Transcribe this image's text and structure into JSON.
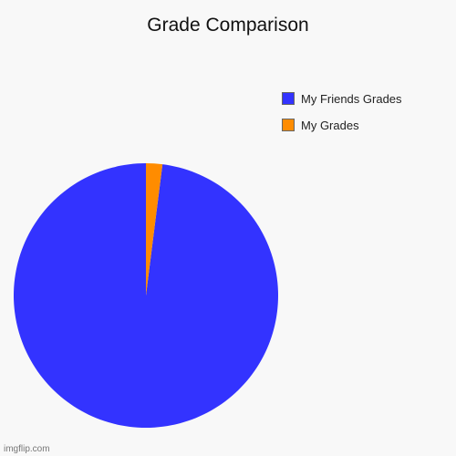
{
  "chart_data": {
    "type": "pie",
    "title": "Grade Comparison",
    "categories": [
      "My Friends Grades",
      "My Grades"
    ],
    "values": [
      98,
      2
    ],
    "colors": [
      "#3333ff",
      "#ff8c00"
    ],
    "legend_position": "top-right"
  },
  "watermark": "imgflip.com",
  "colors": {
    "background": "#f8f8f8"
  }
}
